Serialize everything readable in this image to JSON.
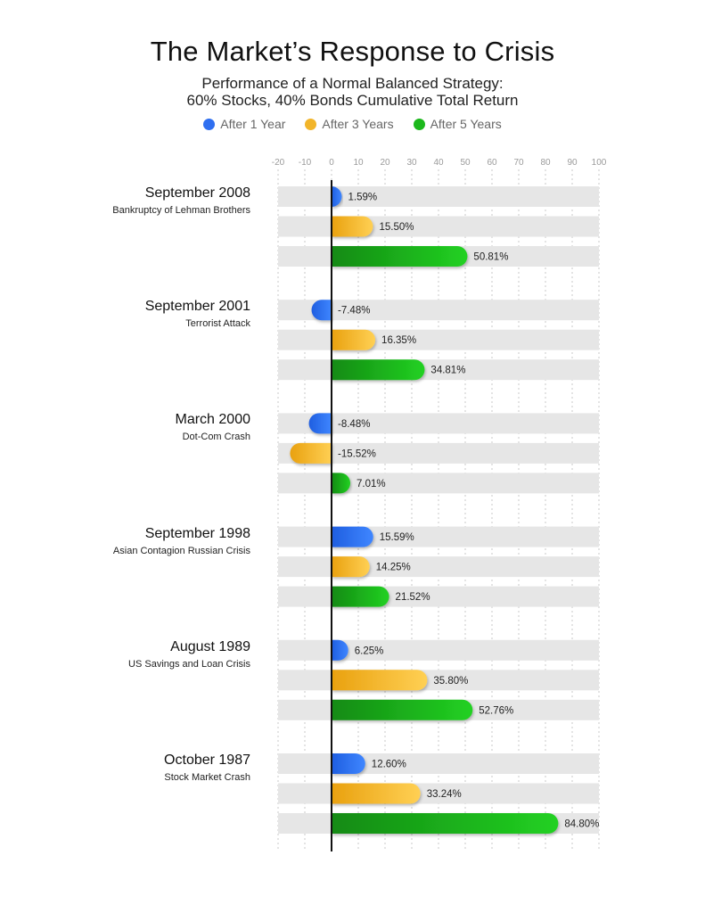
{
  "title": "The Market’s Response to Crisis",
  "subtitle_line1": "Performance of a Normal Balanced Strategy:",
  "subtitle_line2": "60% Stocks, 40% Bonds Cumulative Total Return",
  "colors": {
    "after_1_year": "#2f6ff0",
    "after_3_years": "#f2b52a",
    "after_5_years": "#1cb81c",
    "row_bg": "#e6e6e6",
    "axis": "#111111",
    "grid": "#c8c8c8",
    "tick": "#9a9a9a"
  },
  "chart_data": {
    "type": "bar",
    "orientation": "horizontal",
    "title": "The Market’s Response to Crisis",
    "subtitle": "Performance of a Normal Balanced Strategy: 60% Stocks, 40% Bonds Cumulative Total Return",
    "xlim": [
      -20,
      100
    ],
    "x_ticks": [
      -20,
      -10,
      0,
      10,
      20,
      30,
      40,
      50,
      60,
      70,
      80,
      90,
      100
    ],
    "grid": true,
    "legend_position": "top",
    "legend": [
      "After 1 Year",
      "After 3 Years",
      "After 5 Years"
    ],
    "series": [
      {
        "name": "After 1 Year",
        "values": [
          1.59,
          -7.48,
          -8.48,
          15.59,
          6.25,
          12.6
        ]
      },
      {
        "name": "After 3 Years",
        "values": [
          15.5,
          16.35,
          -15.52,
          14.25,
          35.8,
          33.24
        ]
      },
      {
        "name": "After 5 Years",
        "values": [
          50.81,
          34.81,
          7.01,
          21.52,
          52.76,
          84.8
        ]
      }
    ],
    "categories": [
      {
        "title": "September 2008",
        "subtitle": "Bankruptcy of Lehman Brothers"
      },
      {
        "title": "September 2001",
        "subtitle": "Terrorist Attack"
      },
      {
        "title": "March 2000",
        "subtitle": "Dot-Com Crash"
      },
      {
        "title": "September 1998",
        "subtitle": "Asian Contagion Russian Crisis"
      },
      {
        "title": "August 1989",
        "subtitle": "US Savings and Loan Crisis"
      },
      {
        "title": "October 1987",
        "subtitle": "Stock Market Crash"
      }
    ],
    "value_labels": [
      [
        "1.59%",
        "15.50%",
        "50.81%"
      ],
      [
        "-7.48%",
        "16.35%",
        "34.81%"
      ],
      [
        "-8.48%",
        "-15.52%",
        "7.01%"
      ],
      [
        "15.59%",
        "14.25%",
        "21.52%"
      ],
      [
        "6.25%",
        "35.80%",
        "52.76%"
      ],
      [
        "12.60%",
        "33.24%",
        "84.80%"
      ]
    ]
  }
}
